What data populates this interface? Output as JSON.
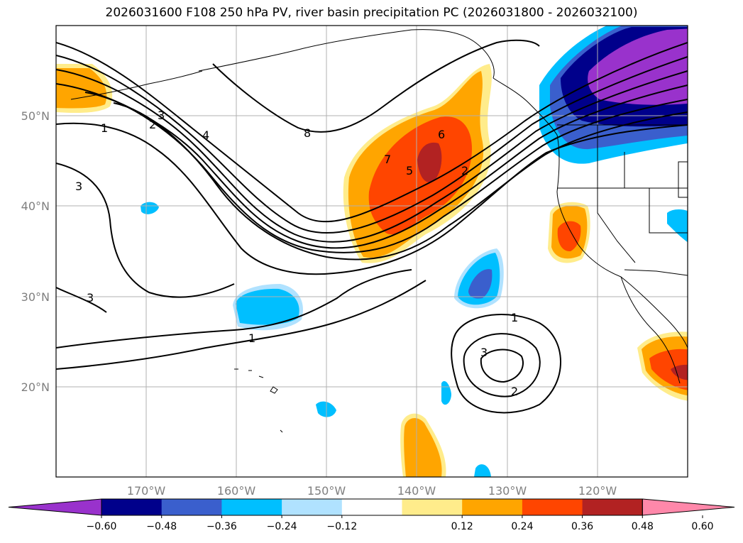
{
  "title": "2026031600 F108 250 hPa PV, river basin precipitation PC (2026031800 - 2026032100)",
  "map": {
    "lon_ticks": [
      "170°W",
      "160°W",
      "150°W",
      "140°W",
      "130°W",
      "120°W"
    ],
    "lat_ticks": [
      "50°N",
      "40°N",
      "30°N",
      "20°N"
    ],
    "grid": true
  },
  "contour_labels": [
    "1",
    "2",
    "3",
    "3",
    "4",
    "8",
    "7",
    "6",
    "5",
    "2",
    "3",
    "1",
    "1",
    "3",
    "2"
  ],
  "colorbar": {
    "ticks": [
      "−0.60",
      "−0.48",
      "−0.36",
      "−0.24",
      "−0.12",
      "0.12",
      "0.24",
      "0.36",
      "0.48",
      "0.60"
    ],
    "colors": [
      "#9932cc",
      "#00008b",
      "#3a5fcd",
      "#00bfff",
      "#b0e2ff",
      "#ffffff",
      "#ffec8b",
      "#ffa500",
      "#ff4500",
      "#b22222",
      "#ff88aa"
    ]
  }
}
